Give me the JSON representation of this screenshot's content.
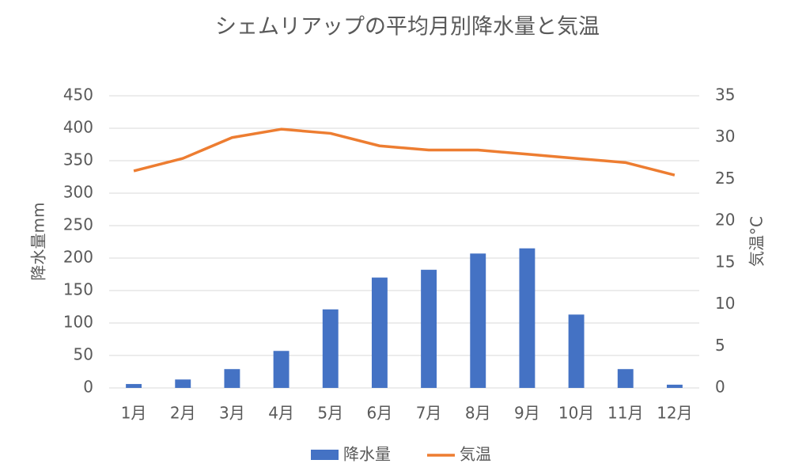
{
  "chart_data": {
    "type": "combo",
    "title": "シェムリアップの平均月別降水量と気温",
    "categories": [
      "1月",
      "2月",
      "3月",
      "4月",
      "5月",
      "6月",
      "7月",
      "8月",
      "9月",
      "10月",
      "11月",
      "12月"
    ],
    "series": [
      {
        "name": "降水量",
        "type": "bar",
        "color": "#4472c4",
        "values": [
          6,
          13,
          29,
          57,
          121,
          170,
          182,
          207,
          215,
          113,
          29,
          5
        ]
      },
      {
        "name": "気温",
        "type": "line",
        "axis": "y2",
        "color": "#ed7d31",
        "values": [
          26,
          27.5,
          30,
          31,
          30.5,
          29,
          28.5,
          28.5,
          28,
          27.5,
          27,
          25.5
        ]
      }
    ],
    "ylabel": "降水量mm",
    "y2label": "気温°C",
    "ylim": [
      0,
      450
    ],
    "yticks": [
      0,
      50,
      100,
      150,
      200,
      250,
      300,
      350,
      400,
      450
    ],
    "y2lim": [
      0,
      35
    ],
    "y2ticks": [
      0,
      5,
      10,
      15,
      20,
      25,
      30,
      35
    ],
    "grid": true,
    "legend": "bottom"
  }
}
